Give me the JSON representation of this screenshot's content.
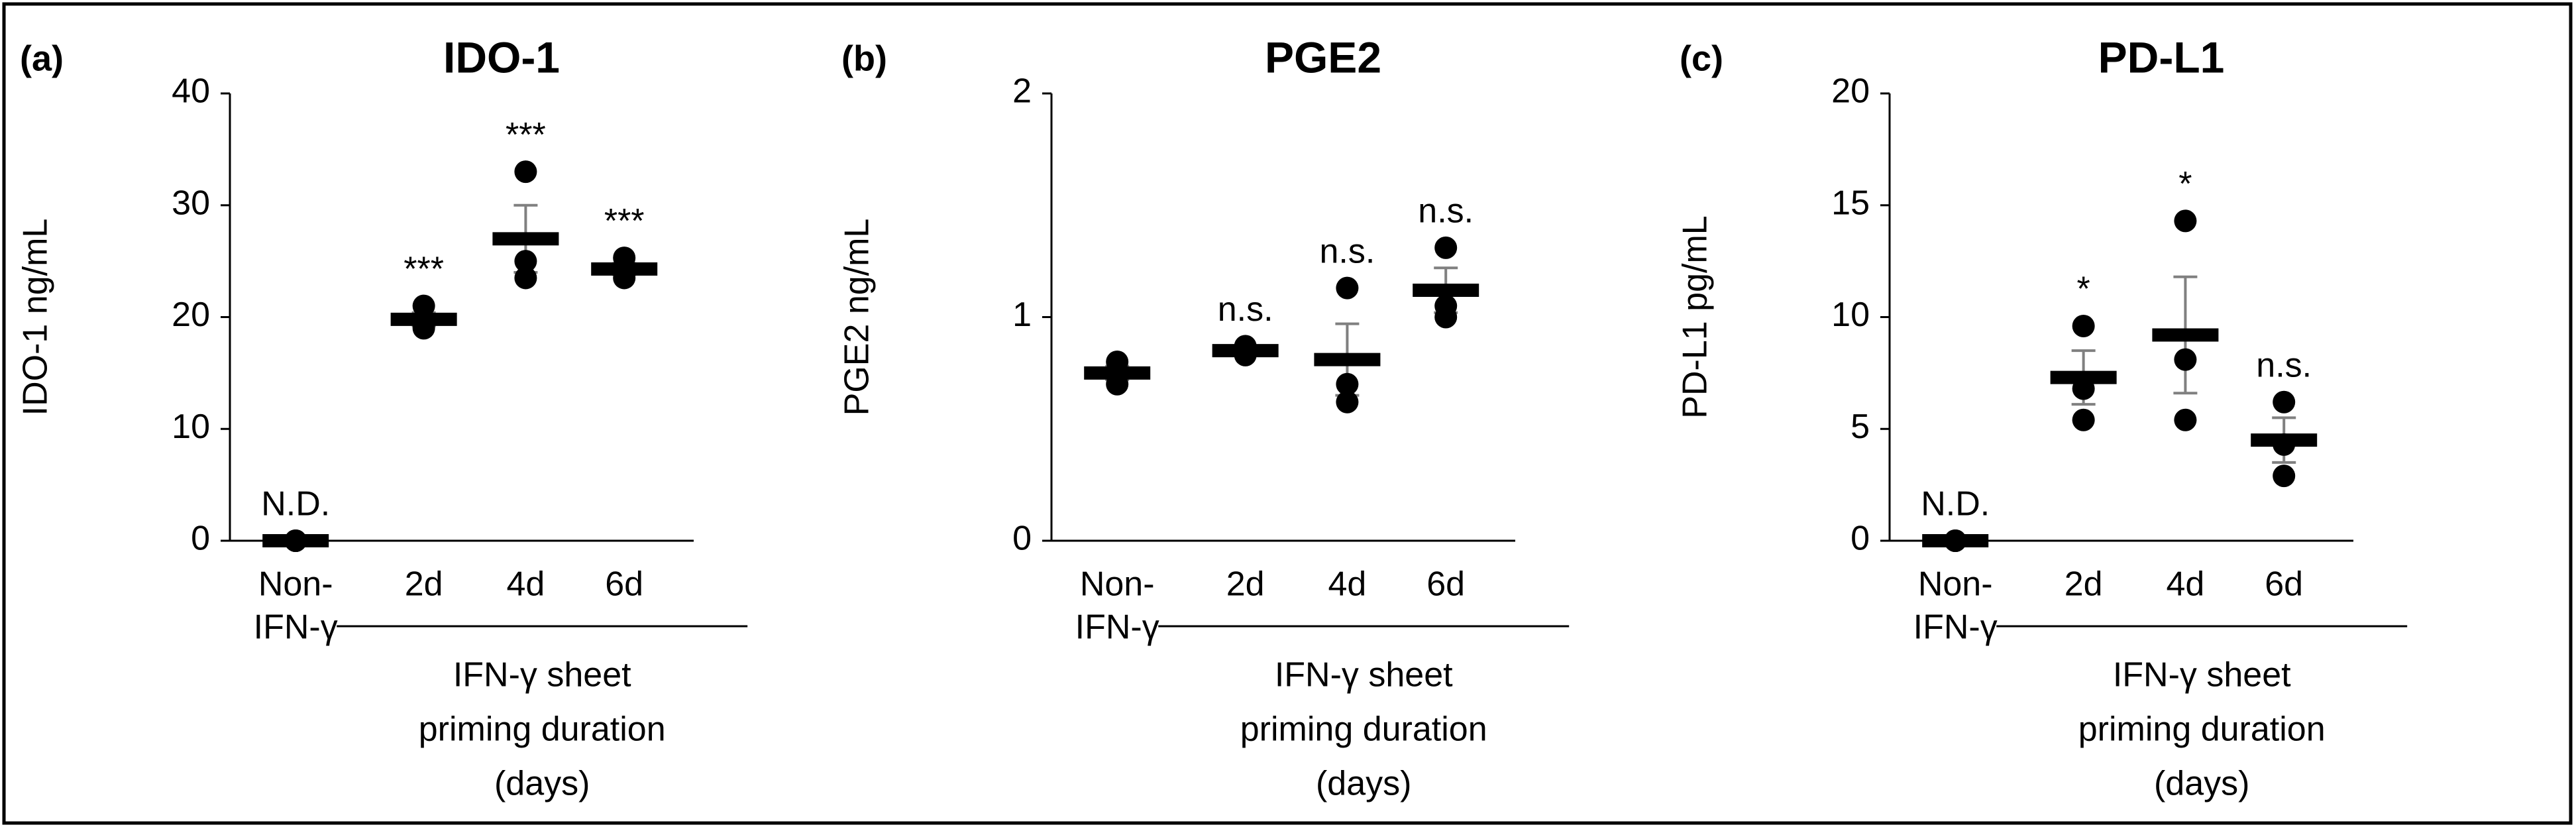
{
  "chart_data": [
    {
      "type": "dotplot",
      "panel_label": "(a)",
      "title": "IDO-1",
      "y_label": "IDO-1 ng/mL",
      "categories": [
        [
          "Non-",
          "IFN-γ"
        ],
        [
          "2d"
        ],
        [
          "4d"
        ],
        [
          "6d"
        ]
      ],
      "group_label": [
        "IFN-γ sheet",
        "priming duration",
        "(days)"
      ],
      "means": [
        0,
        19.8,
        27,
        24.3
      ],
      "errors": [
        0,
        0.6,
        3,
        0.5
      ],
      "points": [
        [
          0,
          0,
          0
        ],
        [
          21,
          19.5,
          19
        ],
        [
          33,
          25,
          23.5
        ],
        [
          25.3,
          24,
          23.5
        ]
      ],
      "significance": [
        "N.D.",
        "***",
        "***",
        "***"
      ],
      "ylim": [
        0,
        40
      ],
      "yticks": [
        0,
        10,
        20,
        30,
        40
      ],
      "color": "#000000",
      "error_color": "#808080"
    },
    {
      "type": "dotplot",
      "panel_label": "(b)",
      "title": "PGE2",
      "y_label": "PGE2 ng/mL",
      "categories": [
        [
          "Non-",
          "IFN-γ"
        ],
        [
          "2d"
        ],
        [
          "4d"
        ],
        [
          "6d"
        ]
      ],
      "group_label": [
        "IFN-γ sheet",
        "priming duration",
        "(days)"
      ],
      "means": [
        0.75,
        0.85,
        0.81,
        1.12
      ],
      "errors": [
        0.03,
        0.02,
        0.16,
        0.1
      ],
      "points": [
        [
          0.8,
          0.75,
          0.7
        ],
        [
          0.87,
          0.85,
          0.83
        ],
        [
          1.13,
          0.7,
          0.62
        ],
        [
          1.31,
          1.05,
          1.0
        ]
      ],
      "significance": [
        null,
        "n.s.",
        "n.s.",
        "n.s."
      ],
      "ylim": [
        0,
        2
      ],
      "yticks": [
        0,
        1,
        2
      ],
      "color": "#000000",
      "error_color": "#808080"
    },
    {
      "type": "dotplot",
      "panel_label": "(c)",
      "title": "PD-L1",
      "y_label": "PD-L1 pg/mL",
      "categories": [
        [
          "Non-",
          "IFN-γ"
        ],
        [
          "2d"
        ],
        [
          "4d"
        ],
        [
          "6d"
        ]
      ],
      "group_label": [
        "IFN-γ sheet",
        "priming duration",
        "(days)"
      ],
      "means": [
        0,
        7.3,
        9.2,
        4.5
      ],
      "errors": [
        0,
        1.2,
        2.6,
        1.0
      ],
      "points": [
        [
          0,
          0,
          0
        ],
        [
          9.6,
          6.8,
          5.4
        ],
        [
          14.3,
          8.1,
          5.4
        ],
        [
          6.2,
          4.3,
          2.9
        ]
      ],
      "significance": [
        "N.D.",
        "*",
        "*",
        "n.s."
      ],
      "ylim": [
        0,
        20
      ],
      "yticks": [
        0,
        5,
        10,
        15,
        20
      ],
      "color": "#000000",
      "error_color": "#808080"
    }
  ]
}
